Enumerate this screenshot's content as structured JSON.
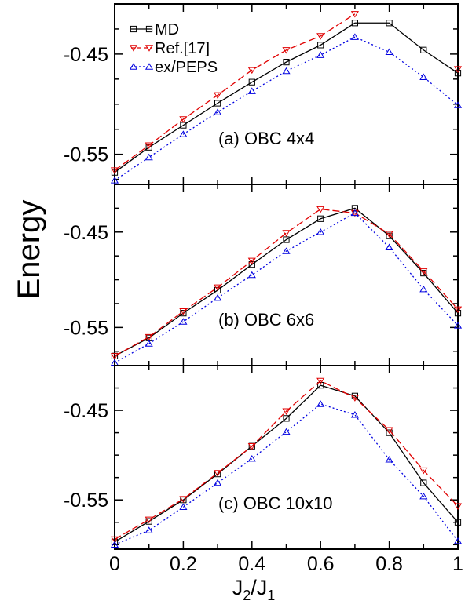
{
  "chart_data": {
    "type": "line",
    "ylabel": "Energy",
    "xlabel_main": "J",
    "xlabel_sub1": "2",
    "xlabel_slash": "/J",
    "xlabel_sub2": "1",
    "x": [
      0,
      0.1,
      0.2,
      0.3,
      0.4,
      0.5,
      0.6,
      0.7,
      0.8,
      0.9,
      1.0
    ],
    "xticks": [
      0,
      0.2,
      0.4,
      0.6,
      0.8,
      1
    ],
    "xtick_labels": [
      "0",
      "0.2",
      "0.4",
      "0.6",
      "0.8",
      "1"
    ],
    "legend": {
      "placement": "top-left",
      "entries": [
        "MD",
        "Ref.[17]",
        "ex/PEPS"
      ]
    },
    "series_styles": [
      {
        "name": "MD",
        "color": "#000000",
        "dash": "none",
        "marker": "square"
      },
      {
        "name": "Ref.[17]",
        "color": "#e00000",
        "dash": "dashed",
        "marker": "triangle-down"
      },
      {
        "name": "ex/PEPS",
        "color": "#0000e0",
        "dash": "dotted",
        "marker": "triangle-up"
      }
    ],
    "panels": [
      {
        "label": "(a) OBC 4x4",
        "ylim": [
          -0.58,
          -0.4
        ],
        "yticks": [
          -0.45,
          -0.55
        ],
        "ytick_labels": [
          "-0.45",
          "-0.55"
        ],
        "series": [
          {
            "name": "MD",
            "values": [
              -0.568,
              -0.543,
              -0.521,
              -0.499,
              -0.478,
              -0.458,
              -0.441,
              -0.419,
              -0.419,
              -0.446,
              -0.469
            ]
          },
          {
            "name": "Ref.[17]",
            "values": [
              -0.566,
              -0.541,
              -0.515,
              -0.491,
              -0.466,
              -0.446,
              -0.432,
              -0.41,
              null,
              null,
              -0.465
            ]
          },
          {
            "name": "ex/PEPS",
            "values": [
              -0.576,
              -0.553,
              -0.53,
              -0.508,
              -0.487,
              -0.467,
              -0.451,
              -0.433,
              -0.448,
              -0.473,
              -0.501
            ]
          }
        ]
      },
      {
        "label": "(b) OBC 6x6",
        "ylim": [
          -0.59,
          -0.4
        ],
        "yticks": [
          -0.45,
          -0.55
        ],
        "ytick_labels": [
          "-0.45",
          "-0.55"
        ],
        "series": [
          {
            "name": "MD",
            "values": [
              -0.58,
              -0.561,
              -0.535,
              -0.511,
              -0.484,
              -0.458,
              -0.436,
              -0.425,
              -0.454,
              -0.493,
              -0.535
            ]
          },
          {
            "name": "Ref.[17]",
            "values": [
              -0.58,
              -0.56,
              -0.533,
              -0.508,
              -0.48,
              -0.451,
              -0.426,
              -0.43,
              -0.452,
              -0.491,
              -0.531
            ]
          },
          {
            "name": "ex/PEPS",
            "values": [
              -0.587,
              -0.567,
              -0.544,
              -0.519,
              -0.495,
              -0.47,
              -0.45,
              -0.43,
              -0.466,
              -0.51,
              -0.548
            ]
          }
        ]
      },
      {
        "label": "(c) OBC 10x10",
        "ylim": [
          -0.605,
          -0.4
        ],
        "yticks": [
          -0.45,
          -0.55
        ],
        "ytick_labels": [
          "-0.45",
          "-0.55"
        ],
        "series": [
          {
            "name": "MD",
            "values": [
              -0.597,
              -0.574,
              -0.55,
              -0.521,
              -0.49,
              -0.459,
              -0.422,
              -0.434,
              -0.475,
              -0.531,
              -0.575
            ]
          },
          {
            "name": "Ref.[17]",
            "values": [
              -0.594,
              -0.572,
              -0.549,
              -0.52,
              -0.49,
              -0.451,
              -0.417,
              -0.436,
              -0.472,
              -0.517,
              -0.557
            ]
          },
          {
            "name": "ex/PEPS",
            "values": [
              -0.6,
              -0.584,
              -0.558,
              -0.531,
              -0.504,
              -0.474,
              -0.443,
              -0.455,
              -0.505,
              -0.546,
              -0.596
            ]
          }
        ]
      }
    ]
  }
}
